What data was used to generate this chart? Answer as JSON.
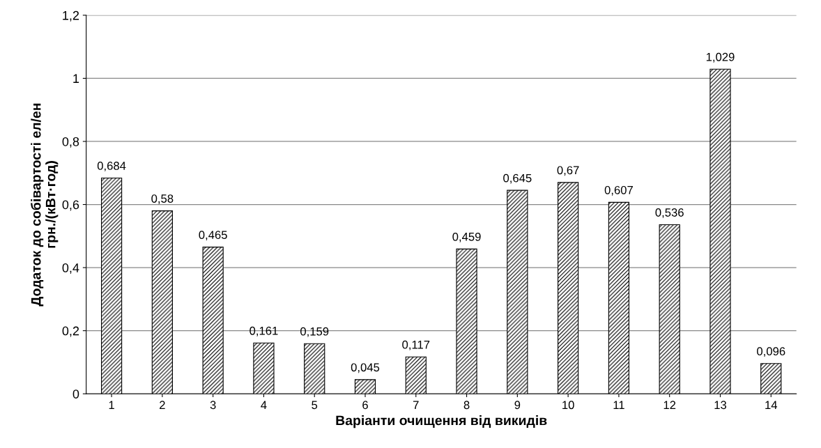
{
  "chart_data": {
    "type": "bar",
    "xlabel": "Варіанти очищення від викидів",
    "ylabel": "Додаток до собівартості ел/ен\nгрн./(кВт·год)",
    "categories": [
      "1",
      "2",
      "3",
      "4",
      "5",
      "6",
      "7",
      "8",
      "9",
      "10",
      "11",
      "12",
      "13",
      "14"
    ],
    "values": [
      0.684,
      0.58,
      0.465,
      0.161,
      0.159,
      0.045,
      0.117,
      0.459,
      0.645,
      0.67,
      0.607,
      0.536,
      1.029,
      0.096
    ],
    "value_labels": [
      "0,684",
      "0,58",
      "0,465",
      "0,161",
      "0,159",
      "0,045",
      "0,117",
      "0,459",
      "0,645",
      "0,67",
      "0,607",
      "0,536",
      "1,029",
      "0,096"
    ],
    "color": "#000000",
    "ylim": [
      0,
      1.2
    ],
    "yticks": [
      0,
      {
        "value": 0.2,
        "label": "0,2"
      },
      {
        "value": 0.4,
        "label": "0,4"
      },
      {
        "value": 0.6,
        "label": "0,6"
      },
      {
        "value": 0.8,
        "label": "0,8"
      },
      1,
      {
        "value": 1.2,
        "label": "1,2"
      }
    ],
    "grid": "y",
    "legend": false
  }
}
